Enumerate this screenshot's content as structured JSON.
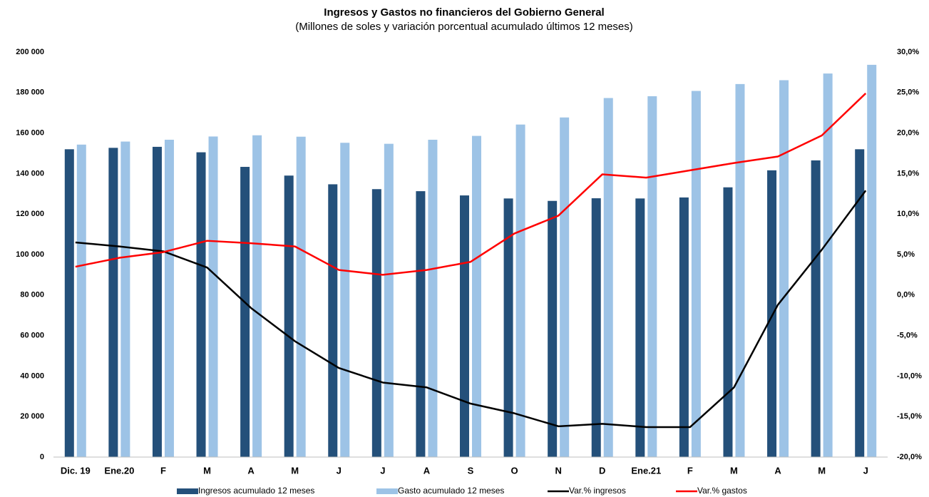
{
  "chart_data": {
    "type": "bar_line",
    "title": "Ingresos y Gastos no financieros del Gobierno General",
    "subtitle": "(Millones de soles y variación porcentual acumulado últimos 12 meses)",
    "categories": [
      "Dic. 19",
      "Ene.20",
      "F",
      "M",
      "A",
      "M",
      "J",
      "J",
      "A",
      "S",
      "O",
      "N",
      "D",
      "Ene.21",
      "F",
      "M",
      "A",
      "M",
      "J"
    ],
    "series": [
      {
        "name": "Ingresos acumulado 12 meses",
        "kind": "bar",
        "color": "#24507a",
        "values": [
          152000,
          152700,
          153200,
          150500,
          143300,
          139000,
          134700,
          132300,
          131300,
          129200,
          127700,
          126500,
          127800,
          127700,
          128200,
          133200,
          141600,
          146500,
          152000
        ]
      },
      {
        "name": "Gasto acumulado 12 meses",
        "kind": "bar",
        "color": "#9dc3e6",
        "values": [
          154300,
          155800,
          156700,
          158300,
          158900,
          158200,
          155200,
          154700,
          156700,
          158600,
          164200,
          167700,
          177300,
          178200,
          180800,
          184200,
          186100,
          189400,
          193700
        ]
      },
      {
        "name": "Var.% ingresos",
        "kind": "line",
        "axis": "y2",
        "color": "#000000",
        "values": [
          6.5,
          6.0,
          5.4,
          3.4,
          -1.6,
          -5.7,
          -9.0,
          -10.8,
          -11.4,
          -13.4,
          -14.6,
          -16.2,
          -15.9,
          -16.3,
          -16.3,
          -11.4,
          -1.2,
          5.6,
          12.9
        ]
      },
      {
        "name": "Var.% gastos",
        "kind": "line",
        "axis": "y2",
        "color": "#ff0000",
        "values": [
          3.5,
          4.6,
          5.3,
          6.7,
          6.4,
          6.0,
          3.1,
          2.5,
          3.1,
          4.1,
          7.6,
          9.8,
          14.9,
          14.5,
          15.4,
          16.3,
          17.1,
          19.7,
          24.9
        ]
      }
    ],
    "ylim": [
      0,
      200000
    ],
    "yticks": [
      0,
      {
        "value": 20000,
        "label": "20 000"
      },
      {
        "value": 40000,
        "label": "40 000"
      },
      {
        "value": 60000,
        "label": "60 000"
      },
      {
        "value": 80000,
        "label": "80 000"
      },
      {
        "value": 100000,
        "label": "100 000"
      },
      {
        "value": 120000,
        "label": "120 000"
      },
      {
        "value": 140000,
        "label": "140 000"
      },
      {
        "value": 160000,
        "label": "160 000"
      },
      {
        "value": 180000,
        "label": "180 000"
      },
      {
        "value": 200000,
        "label": "200 000"
      }
    ],
    "y2lim": [
      -20,
      30
    ],
    "y2ticks": [
      {
        "value": -20,
        "label": "-20,0%"
      },
      {
        "value": -15,
        "label": "-15,0%"
      },
      {
        "value": -10,
        "label": "-10,0%"
      },
      {
        "value": -5,
        "label": "-5,0%"
      },
      {
        "value": 0,
        "label": "0,0%"
      },
      {
        "value": 5,
        "label": "5,0%"
      },
      {
        "value": 10,
        "label": "10,0%"
      },
      {
        "value": 15,
        "label": "15,0%"
      },
      {
        "value": 20,
        "label": "20,0%"
      },
      {
        "value": 25,
        "label": "25,0%"
      },
      {
        "value": 30,
        "label": "30,0%"
      }
    ],
    "legend": "bottom"
  }
}
